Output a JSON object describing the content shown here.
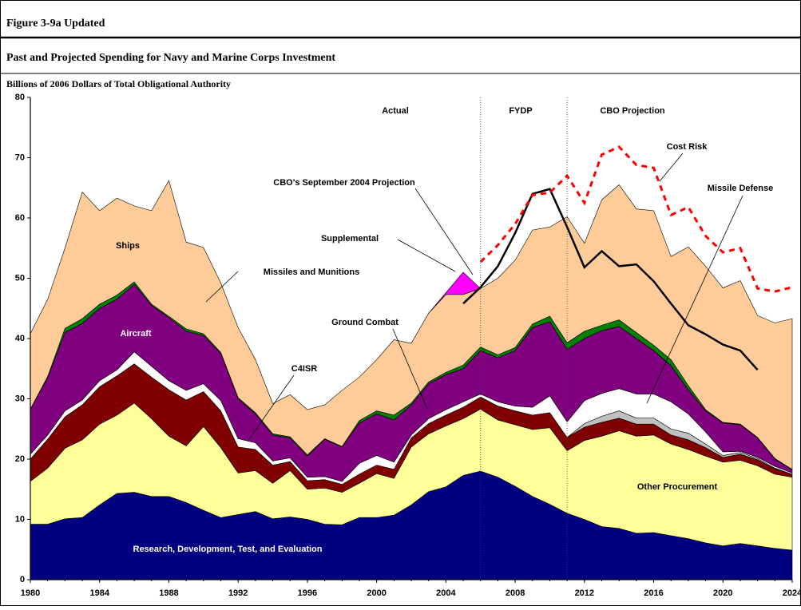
{
  "chart_data": {
    "type": "area",
    "figure_label": "Figure 3-9a Updated",
    "title": "Past and Projected Spending for Navy and Marine Corps Investment",
    "ylabel": "Billions of 2006 Dollars of Total Obligational Authority",
    "annotations": [
      "Actual",
      "FYDP",
      "CBO Projection"
    ],
    "vlines": [
      2006,
      2011
    ],
    "x": [
      1980,
      1981,
      1982,
      1983,
      1984,
      1985,
      1986,
      1987,
      1988,
      1989,
      1990,
      1991,
      1992,
      1993,
      1994,
      1995,
      1996,
      1997,
      1998,
      1999,
      2000,
      2001,
      2002,
      2003,
      2004,
      2005,
      2006,
      2007,
      2008,
      2009,
      2010,
      2011,
      2012,
      2013,
      2014,
      2015,
      2016,
      2017,
      2018,
      2019,
      2020,
      2021,
      2022,
      2023,
      2024
    ],
    "xlim": [
      1980,
      2024
    ],
    "xticks": [
      1980,
      1984,
      1988,
      1992,
      1996,
      2000,
      2004,
      2008,
      2012,
      2016,
      2020,
      2024
    ],
    "ylim": [
      0,
      80
    ],
    "yticks": [
      0,
      10,
      20,
      30,
      40,
      50,
      60,
      70,
      80
    ],
    "series": [
      {
        "name": "Research, Development, Test, and Evaluation",
        "color": "#000080",
        "values": [
          9.2,
          9.2,
          10.1,
          10.3,
          12.4,
          14.3,
          14.5,
          13.8,
          13.8,
          12.8,
          11.5,
          10.3,
          10.8,
          11.3,
          10.1,
          10.4,
          10.0,
          9.2,
          9.1,
          10.3,
          10.3,
          10.7,
          12.4,
          14.6,
          15.4,
          17.3,
          18.0,
          17.0,
          15.5,
          13.8,
          12.5,
          11.0,
          10.0,
          8.8,
          8.5,
          7.7,
          7.8,
          7.3,
          6.8,
          6.1,
          5.6,
          6.0,
          5.6,
          5.2,
          4.9
        ]
      },
      {
        "name": "Other Procurement",
        "color": "#ffff99",
        "values": [
          7.1,
          9.3,
          11.7,
          12.9,
          13.4,
          13.0,
          14.8,
          12.9,
          10.0,
          9.4,
          13.9,
          11.6,
          6.9,
          6.8,
          5.9,
          7.7,
          5.0,
          6.0,
          5.4,
          5.7,
          7.3,
          6.1,
          9.6,
          9.6,
          10.1,
          9.4,
          10.3,
          9.5,
          10.2,
          11.1,
          12.7,
          10.4,
          13.1,
          15.0,
          16.2,
          16.1,
          16.2,
          15.2,
          14.8,
          14.4,
          13.9,
          13.8,
          13.3,
          12.3,
          12.1
        ]
      },
      {
        "name": "Missiles and Munitions",
        "color": "#800000",
        "values": [
          3.7,
          4.8,
          5.2,
          5.8,
          6.2,
          6.5,
          6.5,
          6.9,
          7.7,
          7.6,
          5.8,
          6.1,
          4.3,
          3.5,
          3.0,
          1.5,
          1.4,
          1.4,
          1.3,
          1.5,
          1.4,
          1.5,
          1.5,
          1.7,
          1.8,
          1.9,
          2.0,
          2.3,
          2.3,
          2.4,
          2.5,
          2.2,
          2.2,
          2.3,
          2.1,
          2.0,
          1.8,
          1.5,
          1.6,
          1.4,
          0.8,
          1.0,
          1.0,
          0.9,
          0.5
        ]
      },
      {
        "name": "Missile Defense",
        "color": "#c0c0c0",
        "values": [
          null,
          null,
          null,
          null,
          null,
          null,
          null,
          null,
          null,
          null,
          null,
          null,
          null,
          null,
          null,
          null,
          null,
          null,
          null,
          null,
          null,
          null,
          null,
          null,
          null,
          null,
          null,
          null,
          null,
          null,
          null,
          0,
          0.6,
          1.0,
          1.2,
          1.0,
          1.0,
          1.0,
          1.1,
          0.6,
          0.3,
          0.3,
          0.2,
          0.1,
          0
        ]
      },
      {
        "name": "C4ISR",
        "color": "#ffffff",
        "values": [
          0.8,
          0.7,
          1.0,
          0.8,
          1.0,
          1.0,
          2.0,
          1.8,
          1.5,
          1.6,
          1.3,
          1.7,
          1.4,
          1.1,
          0.7,
          0.6,
          0.6,
          0.5,
          0.5,
          1.8,
          1.6,
          1.2,
          0.5,
          0.8,
          0.9,
          0.9,
          0.5,
          0.7,
          0.8,
          1.3,
          2.8,
          2.6,
          3.8,
          3.8,
          3.7,
          4.0,
          4.0,
          4.5,
          3.2,
          2.0,
          0.6,
          0.2,
          0.2,
          0.3,
          0.2
        ]
      },
      {
        "name": "Aircraft",
        "color": "#800080",
        "values": [
          7.4,
          9.5,
          13.0,
          12.7,
          12.0,
          11.7,
          11.2,
          10.1,
          10.5,
          9.8,
          8.0,
          7.8,
          6.6,
          4.8,
          4.3,
          3.3,
          3.5,
          6.2,
          5.7,
          6.7,
          6.9,
          7.0,
          5.0,
          5.8,
          5.8,
          5.5,
          7.2,
          7.3,
          9.2,
          13.2,
          12.3,
          12.0,
          10.3,
          10.4,
          10.3,
          9.2,
          7.2,
          6.0,
          4.0,
          3.5,
          4.8,
          4.4,
          3.2,
          1.2,
          0.5
        ]
      },
      {
        "name": "Ground Combat",
        "color": "#008000",
        "values": [
          0.1,
          0.2,
          0.7,
          0.8,
          0.7,
          0.7,
          0.4,
          0.2,
          0.2,
          0.4,
          0.3,
          0.2,
          0.2,
          0.2,
          0.2,
          0.2,
          0.2,
          0.1,
          0.1,
          0.4,
          0.5,
          0.8,
          0.3,
          0.3,
          0.4,
          0.6,
          0.6,
          0.5,
          0.5,
          0.6,
          0.9,
          1.1,
          1.2,
          0.9,
          1.1,
          1.0,
          0.9,
          1.0,
          0.7,
          0.2,
          0.1,
          0.1,
          0.1,
          0.1,
          0.1
        ]
      },
      {
        "name": "Ships",
        "color": "#ffcc99",
        "values": [
          12.5,
          12.8,
          13.3,
          21.0,
          15.5,
          16.1,
          12.6,
          15.5,
          22.5,
          14.4,
          14.3,
          11.5,
          11.6,
          8.8,
          5.0,
          7.0,
          7.5,
          5.6,
          9.3,
          7.2,
          8.5,
          12.5,
          9.9,
          11.4,
          12.9,
          11.7,
          9.7,
          12.7,
          14.5,
          15.6,
          14.8,
          20.9,
          14.6,
          20.8,
          22.4,
          20.5,
          22.3,
          17.1,
          23.0,
          23.8,
          22.3,
          23.8,
          20.2,
          22.5,
          25.0
        ]
      },
      {
        "name": "Supplemental",
        "color": "#ff00ff",
        "values": [
          null,
          null,
          null,
          null,
          null,
          null,
          null,
          null,
          null,
          null,
          null,
          null,
          null,
          null,
          null,
          null,
          null,
          null,
          null,
          null,
          null,
          null,
          null,
          0,
          0.3,
          3.7,
          0,
          null,
          null,
          null,
          null,
          null,
          null,
          null,
          null,
          null,
          null,
          null,
          null,
          null,
          null,
          null,
          null,
          null,
          null
        ]
      }
    ],
    "lines": [
      {
        "name": "CBO's September 2004 Projection",
        "color": "#000000",
        "dashed": false,
        "values": [
          null,
          null,
          null,
          null,
          null,
          null,
          null,
          null,
          null,
          null,
          null,
          null,
          null,
          null,
          null,
          null,
          null,
          null,
          null,
          null,
          null,
          null,
          null,
          null,
          null,
          45.8,
          48.5,
          52.0,
          57.5,
          64.0,
          64.8,
          58.5,
          51.8,
          54.5,
          52.0,
          52.3,
          49.5,
          45.8,
          42.2,
          40.7,
          39.0,
          38.0,
          34.8,
          null,
          null
        ]
      },
      {
        "name": "Cost Risk",
        "color": "#ff0000",
        "dashed": true,
        "values": [
          null,
          null,
          null,
          null,
          null,
          null,
          null,
          null,
          null,
          null,
          null,
          null,
          null,
          null,
          null,
          null,
          null,
          null,
          null,
          null,
          null,
          null,
          null,
          null,
          null,
          null,
          52.7,
          55.5,
          59.0,
          63.8,
          64.2,
          67.0,
          62.5,
          70.5,
          71.8,
          68.8,
          68.3,
          60.5,
          61.8,
          57.0,
          54.3,
          55.0,
          48.3,
          47.8,
          48.5
        ]
      }
    ]
  }
}
